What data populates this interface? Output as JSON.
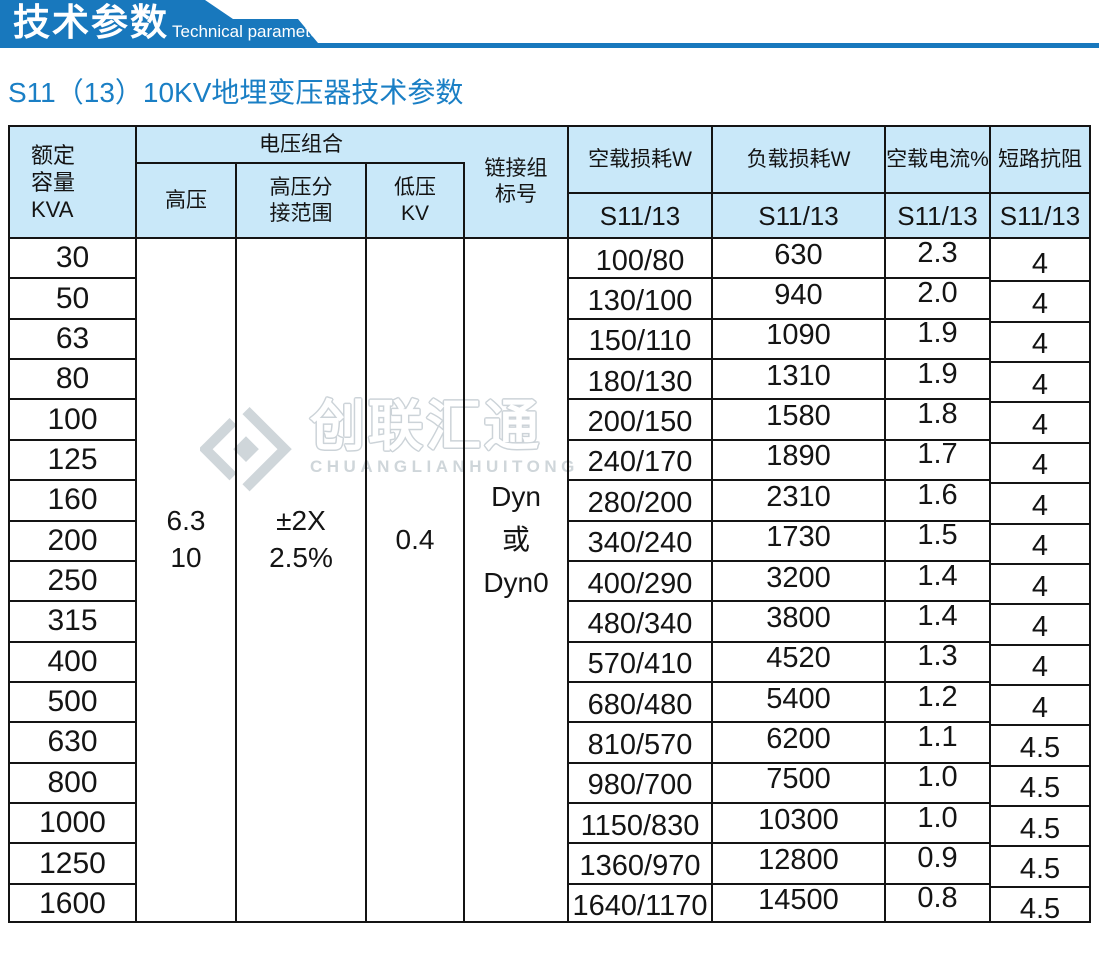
{
  "banner": {
    "title_cn": "技术参数",
    "title_en": "Technical parameter"
  },
  "page_title": "S11（13）10KV地埋变压器技术参数",
  "watermark": {
    "cn": "创联汇通",
    "en": "CHUANGLIANHUITONG",
    "logo_icon": "diamond-logo-icon"
  },
  "colors": {
    "banner_blue": "#1878bd",
    "title_blue": "#1a7fc5",
    "header_bg": "#c9e8f9",
    "grid_border": "#141414",
    "watermark_gray": "#cfd6da"
  },
  "table": {
    "header": {
      "kva": "额定\n容量\nKVA",
      "voltage_group": "电压组合",
      "hv": "高压",
      "tap": "高压分\n接范围",
      "lv": "低压\nKV",
      "vector": "链接组\n标号",
      "noload_loss": "空载损耗W",
      "load_loss": "负载损耗W",
      "noload_current": "空载电流%",
      "impedance": "短路抗阻",
      "sub": "S11/13"
    },
    "merged": {
      "hv": "6.3\n10",
      "tap": "±2X\n2.5%",
      "lv": "0.4",
      "vector": "Dyn\n或\nDyn0"
    },
    "rows": [
      {
        "kva": "30",
        "noload": "100/80",
        "load": "630",
        "current": "2.3",
        "impedance": "4"
      },
      {
        "kva": "50",
        "noload": "130/100",
        "load": "940",
        "current": "2.0",
        "impedance": "4"
      },
      {
        "kva": "63",
        "noload": "150/110",
        "load": "1090",
        "current": "1.9",
        "impedance": "4"
      },
      {
        "kva": "80",
        "noload": "180/130",
        "load": "1310",
        "current": "1.9",
        "impedance": "4"
      },
      {
        "kva": "100",
        "noload": "200/150",
        "load": "1580",
        "current": "1.8",
        "impedance": "4"
      },
      {
        "kva": "125",
        "noload": "240/170",
        "load": "1890",
        "current": "1.7",
        "impedance": "4"
      },
      {
        "kva": "160",
        "noload": "280/200",
        "load": "2310",
        "current": "1.6",
        "impedance": "4"
      },
      {
        "kva": "200",
        "noload": "340/240",
        "load": "1730",
        "current": "1.5",
        "impedance": "4"
      },
      {
        "kva": "250",
        "noload": "400/290",
        "load": "3200",
        "current": "1.4",
        "impedance": "4"
      },
      {
        "kva": "315",
        "noload": "480/340",
        "load": "3800",
        "current": "1.4",
        "impedance": "4"
      },
      {
        "kva": "400",
        "noload": "570/410",
        "load": "4520",
        "current": "1.3",
        "impedance": "4"
      },
      {
        "kva": "500",
        "noload": "680/480",
        "load": "5400",
        "current": "1.2",
        "impedance": "4"
      },
      {
        "kva": "630",
        "noload": "810/570",
        "load": "6200",
        "current": "1.1",
        "impedance": "4.5"
      },
      {
        "kva": "800",
        "noload": "980/700",
        "load": "7500",
        "current": "1.0",
        "impedance": "4.5"
      },
      {
        "kva": "1000",
        "noload": "1150/830",
        "load": "10300",
        "current": "1.0",
        "impedance": "4.5"
      },
      {
        "kva": "1250",
        "noload": "1360/970",
        "load": "12800",
        "current": "0.9",
        "impedance": "4.5"
      },
      {
        "kva": "1600",
        "noload": "1640/1170",
        "load": "14500",
        "current": "0.8",
        "impedance": "4.5"
      }
    ]
  }
}
